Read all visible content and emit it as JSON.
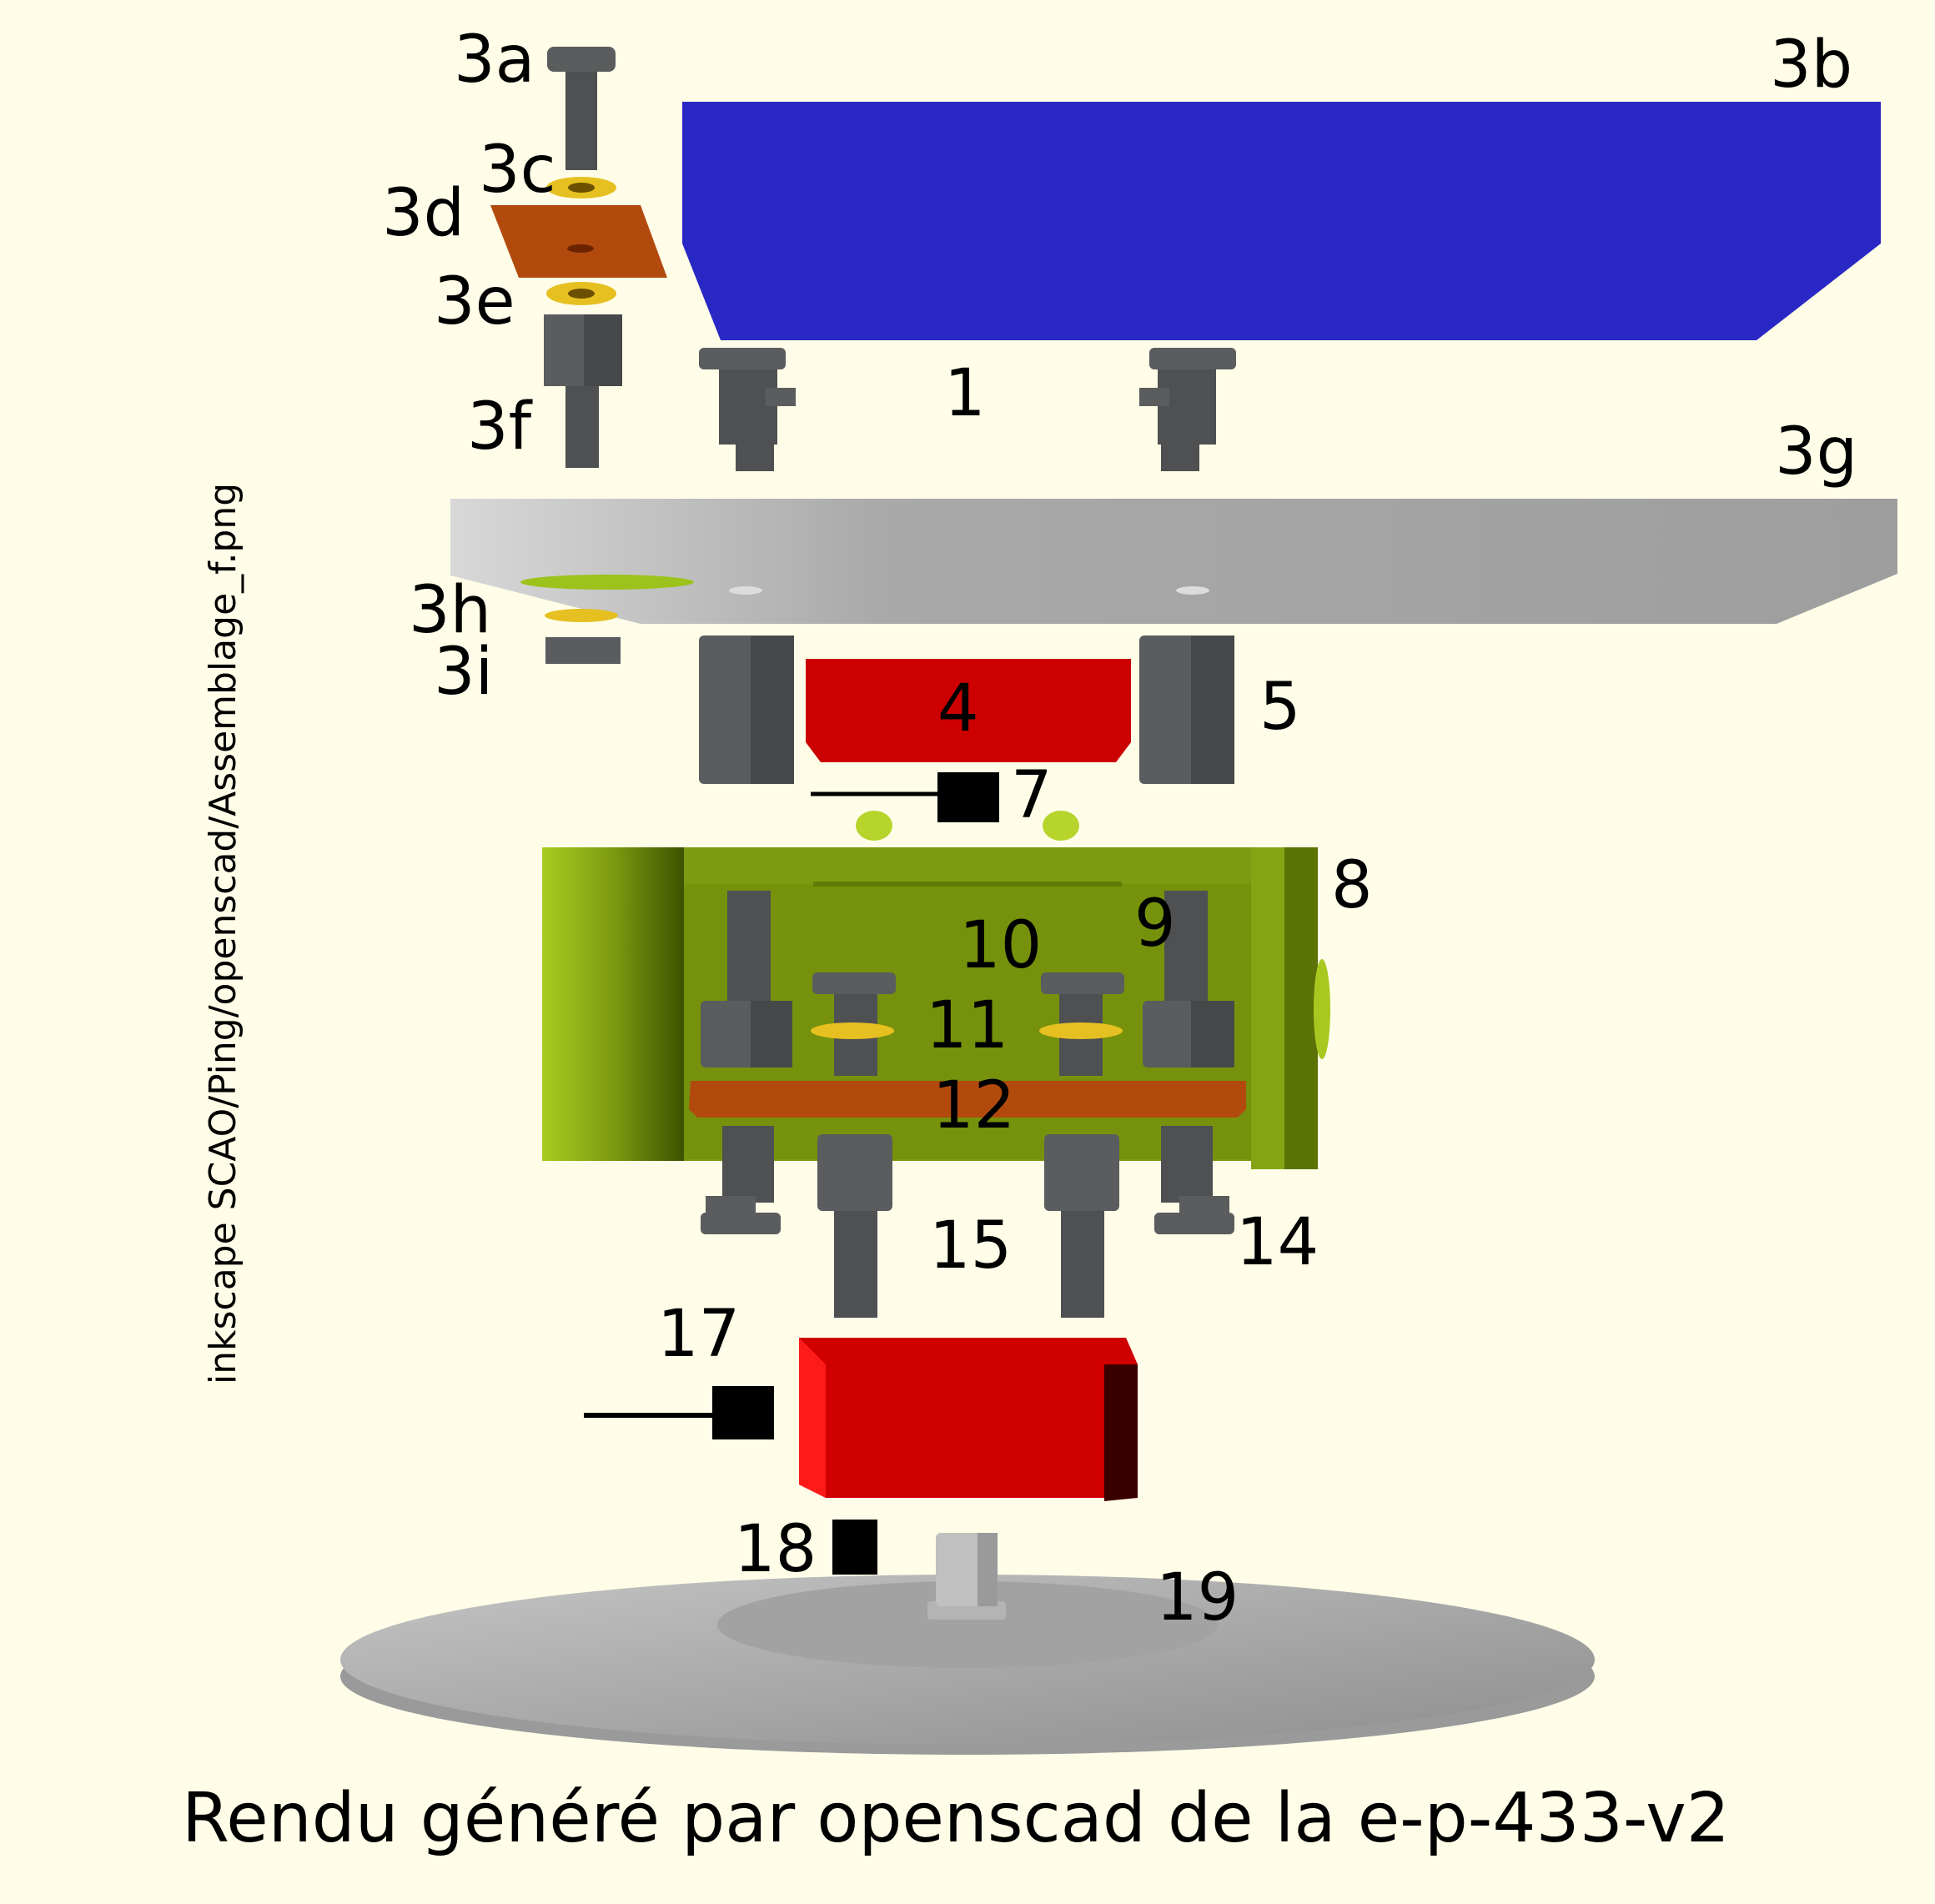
{
  "caption": "Rendu généré par openscad de la e-p-433-v2",
  "side_text": "inkscape SCAO/Ping/openscad/Assemblage_f.png",
  "colors": {
    "background": "#fffde8",
    "blue_part": "#2a28c4",
    "grey_plate": "#a8a8a8",
    "red_part": "#cc0000",
    "green_body": "#7e9a10",
    "orange_plate": "#b24a0e",
    "screw_grey": "#555759",
    "washer_yellow": "#e6c020",
    "connector_black": "#000000"
  },
  "labels": {
    "l3a": "3a",
    "l3b": "3b",
    "l3c": "3c",
    "l3d": "3d",
    "l3e": "3e",
    "l3f": "3f",
    "l1": "1",
    "l3g": "3g",
    "l3h": "3h",
    "l3i": "3i",
    "l4": "4",
    "l5": "5",
    "l7": "7",
    "l8": "8",
    "l9": "9",
    "l10": "10",
    "l11": "11",
    "l12": "12",
    "l14": "14",
    "l15": "15",
    "l17": "17",
    "l18": "18",
    "l19": "19"
  }
}
